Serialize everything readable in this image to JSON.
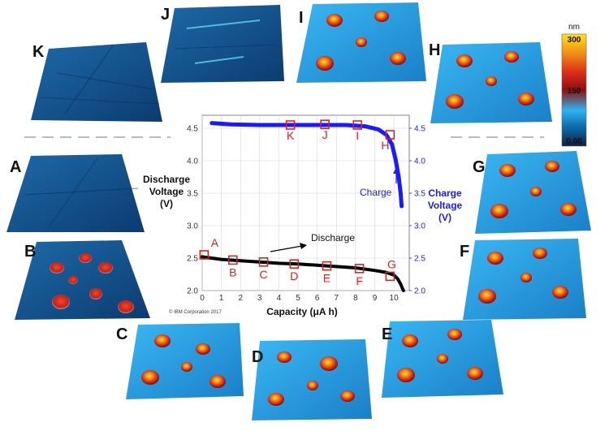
{
  "panels": [
    {
      "letter": "A",
      "kind": "flat"
    },
    {
      "letter": "B",
      "kind": "sparse"
    },
    {
      "letter": "C",
      "kind": "dense"
    },
    {
      "letter": "D",
      "kind": "dense"
    },
    {
      "letter": "E",
      "kind": "dense"
    },
    {
      "letter": "F",
      "kind": "dense"
    },
    {
      "letter": "G",
      "kind": "dense"
    },
    {
      "letter": "H",
      "kind": "dense"
    },
    {
      "letter": "I",
      "kind": "dense"
    },
    {
      "letter": "J",
      "kind": "flat-streaks"
    },
    {
      "letter": "K",
      "kind": "flat"
    }
  ],
  "colorbar": {
    "unit": "nm",
    "max_label": "300",
    "mid_label": "150",
    "min_label": "0.00",
    "colors": [
      "#0a1f44",
      "#0f6fb0",
      "#2fb4f0",
      "#8c1010",
      "#d82a1a",
      "#f08a18",
      "#ffe21a"
    ]
  },
  "copyright": "© IBM Corporation 2017",
  "annotations": {
    "discharge": "Discharge",
    "charge": "Charge"
  },
  "chart_data": {
    "type": "line",
    "xlabel": "Capacity (μA h)",
    "ylabel_left": [
      "Discharge",
      "Voltage",
      "(V)"
    ],
    "ylabel_right": [
      "Charge",
      "Voltage",
      "(V)"
    ],
    "xlim": [
      0,
      10.8
    ],
    "ylim": [
      2.0,
      4.7
    ],
    "x_ticks": [
      "0",
      "1",
      "2",
      "3",
      "4",
      "5",
      "6",
      "7",
      "8",
      "9",
      "10"
    ],
    "y_ticks_left": [
      "2.0",
      "2.5",
      "3.0",
      "3.5",
      "4.0",
      "4.5"
    ],
    "y_ticks_right": [
      "2.0",
      "2.5",
      "3.0",
      "3.5",
      "4.0",
      "4.5"
    ],
    "grid": true,
    "series": [
      {
        "name": "Discharge",
        "color": "#000000",
        "x": [
          0,
          0.5,
          1,
          2,
          3,
          4,
          5,
          6,
          7,
          8,
          9,
          9.6,
          10,
          10.2,
          10.35,
          10.45,
          10.5
        ],
        "y": [
          2.52,
          2.5,
          2.48,
          2.46,
          2.44,
          2.42,
          2.41,
          2.39,
          2.37,
          2.35,
          2.31,
          2.28,
          2.24,
          2.18,
          2.1,
          2.03,
          2.0
        ]
      },
      {
        "name": "Charge",
        "color": "#1a1aff",
        "x": [
          0.5,
          1.5,
          3,
          4.5,
          6,
          7.5,
          8.5,
          9.2,
          9.6,
          9.9,
          10.1,
          10.25,
          10.35,
          10.4
        ],
        "y": [
          4.58,
          4.56,
          4.55,
          4.55,
          4.55,
          4.55,
          4.53,
          4.48,
          4.4,
          4.25,
          4.0,
          3.75,
          3.5,
          3.3
        ]
      }
    ],
    "markers": [
      {
        "label": "A",
        "x": 0.1,
        "y": 2.55
      },
      {
        "label": "B",
        "x": 1.6,
        "y": 2.47
      },
      {
        "label": "C",
        "x": 3.2,
        "y": 2.44
      },
      {
        "label": "D",
        "x": 4.8,
        "y": 2.41
      },
      {
        "label": "E",
        "x": 6.5,
        "y": 2.38
      },
      {
        "label": "F",
        "x": 8.2,
        "y": 2.34
      },
      {
        "label": "G",
        "x": 9.8,
        "y": 2.22
      },
      {
        "label": "H",
        "x": 9.8,
        "y": 4.4
      },
      {
        "label": "I",
        "x": 8.1,
        "y": 4.55
      },
      {
        "label": "J",
        "x": 6.4,
        "y": 4.56
      },
      {
        "label": "K",
        "x": 4.6,
        "y": 4.55
      }
    ]
  }
}
